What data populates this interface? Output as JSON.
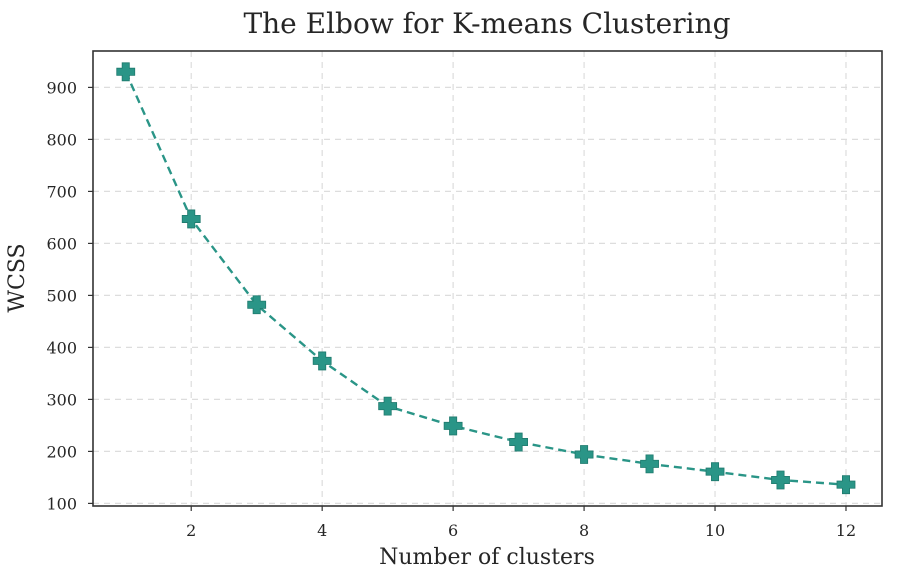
{
  "chart_data": {
    "type": "line",
    "title": "The Elbow for K-means Clustering",
    "xlabel": "Number of clusters",
    "ylabel": "WCSS",
    "x": [
      1,
      2,
      3,
      4,
      5,
      6,
      7,
      8,
      9,
      10,
      11,
      12
    ],
    "series": [
      {
        "values": [
          930,
          647,
          482,
          374,
          287,
          249,
          218,
          194,
          176,
          161,
          145,
          136
        ],
        "color": "#2a9587",
        "marker": "plus-filled",
        "line_style": "dashed"
      }
    ],
    "xlim": [
      0.5,
      12.55
    ],
    "ylim": [
      95,
      970
    ],
    "xticks": [
      2,
      4,
      6,
      8,
      10,
      12
    ],
    "xtick_labels": [
      "2",
      "4",
      "6",
      "8",
      "10",
      "12"
    ],
    "yticks": [
      100,
      200,
      300,
      400,
      500,
      600,
      700,
      800,
      900
    ],
    "ytick_labels": [
      "100",
      "200",
      "300",
      "400",
      "500",
      "600",
      "700",
      "800",
      "900"
    ],
    "grid": true,
    "grid_style": "dashed",
    "legend": "none"
  }
}
